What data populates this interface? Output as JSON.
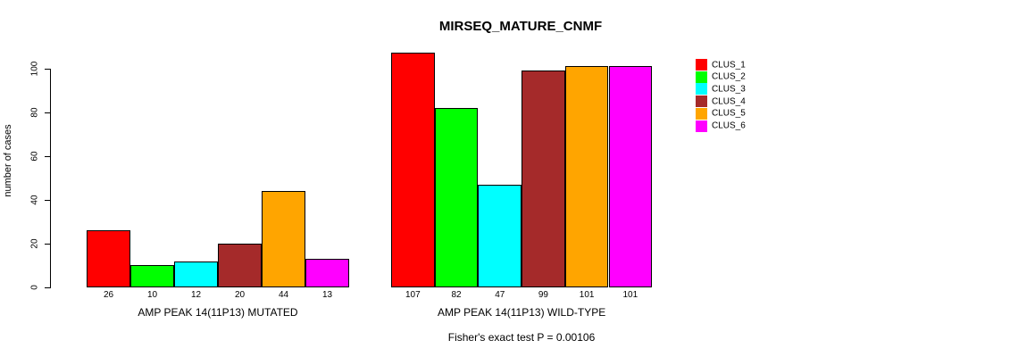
{
  "chart_data": {
    "type": "bar",
    "title": "MIRSEQ_MATURE_CNMF",
    "xlabel": "",
    "ylabel": "number of cases",
    "ylim": [
      0,
      107
    ],
    "yticks": [
      0,
      20,
      40,
      60,
      80,
      100
    ],
    "grid": false,
    "legend_position": "right",
    "categories": [
      "AMP PEAK 14(11P13) MUTATED",
      "AMP PEAK 14(11P13) WILD-TYPE"
    ],
    "series": [
      {
        "name": "CLUS_1",
        "color": "#FF0000",
        "values": [
          26,
          107
        ]
      },
      {
        "name": "CLUS_2",
        "color": "#00FF00",
        "values": [
          10,
          82
        ]
      },
      {
        "name": "CLUS_3",
        "color": "#00FFFF",
        "values": [
          12,
          47
        ]
      },
      {
        "name": "CLUS_4",
        "color": "#A52A2A",
        "values": [
          20,
          99
        ]
      },
      {
        "name": "CLUS_5",
        "color": "#FFA500",
        "values": [
          44,
          101
        ]
      },
      {
        "name": "CLUS_6",
        "color": "#FF00FF",
        "values": [
          13,
          101
        ]
      }
    ],
    "bar_value_labels": [
      [
        "26",
        "10",
        "12",
        "20",
        "44",
        "13"
      ],
      [
        "107",
        "82",
        "47",
        "99",
        "101",
        "101"
      ]
    ],
    "annotation": "Fisher's exact test P = 0.00106"
  }
}
